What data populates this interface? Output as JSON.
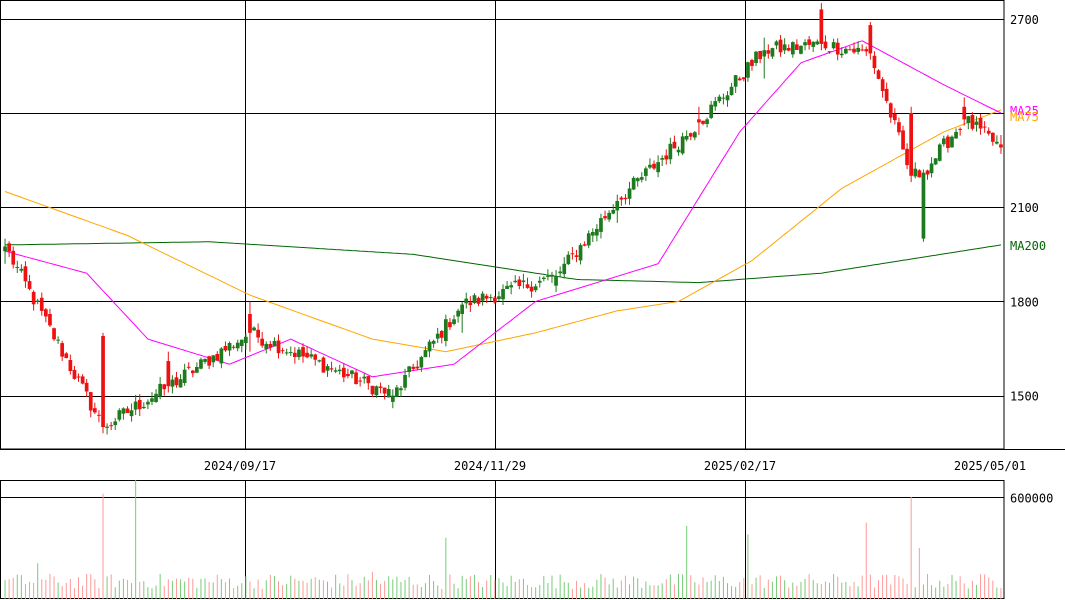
{
  "chart_data": [
    {
      "type": "candlestick",
      "panel": "price",
      "ylim": [
        1330,
        2760
      ],
      "y_ticks": [
        1500,
        1800,
        2100,
        2700
      ],
      "y_tick_labels": [
        "1500",
        "1800",
        "2100",
        "2700"
      ],
      "x_ticks": [
        "2024/09/17",
        "2024/11/29",
        "2025/02/17",
        "2025/05/01"
      ],
      "grid": true,
      "colors": {
        "up": "#1e7a1e",
        "down": "#ee1111",
        "ma25": "#ff00ff",
        "ma75": "#ffa500",
        "ma200": "#006600"
      },
      "moving_average_labels": [
        {
          "name": "MA25",
          "color": "#ff00ff"
        },
        {
          "name": "MA75",
          "color": "#ffa500"
        },
        {
          "name": "MA200",
          "color": "#006600"
        }
      ],
      "x_count": 245,
      "key_ohlc": [
        {
          "i": 0,
          "open": 1960,
          "high": 2000,
          "low": 1920,
          "close": 1975
        },
        {
          "i": 24,
          "open": 1690,
          "high": 1700,
          "low": 1380,
          "close": 1400
        },
        {
          "i": 40,
          "open": 1610,
          "high": 1640,
          "low": 1510,
          "close": 1530
        },
        {
          "i": 60,
          "open": 1760,
          "high": 1800,
          "low": 1640,
          "close": 1700
        },
        {
          "i": 95,
          "open": 1480,
          "high": 1520,
          "low": 1460,
          "close": 1500
        },
        {
          "i": 112,
          "open": 1760,
          "high": 1800,
          "low": 1700,
          "close": 1790
        },
        {
          "i": 135,
          "open": 1850,
          "high": 1900,
          "low": 1830,
          "close": 1880
        },
        {
          "i": 150,
          "open": 2090,
          "high": 2140,
          "low": 2050,
          "close": 2120
        },
        {
          "i": 170,
          "open": 2380,
          "high": 2420,
          "low": 2330,
          "close": 2370
        },
        {
          "i": 186,
          "open": 2580,
          "high": 2640,
          "low": 2510,
          "close": 2600
        },
        {
          "i": 200,
          "open": 2730,
          "high": 2750,
          "low": 2600,
          "close": 2620
        },
        {
          "i": 212,
          "open": 2680,
          "high": 2690,
          "low": 2570,
          "close": 2590
        },
        {
          "i": 222,
          "open": 2400,
          "high": 2420,
          "low": 2180,
          "close": 2200
        },
        {
          "i": 225,
          "open": 2000,
          "high": 2220,
          "low": 1990,
          "close": 2210
        },
        {
          "i": 235,
          "open": 2420,
          "high": 2450,
          "low": 2360,
          "close": 2380
        },
        {
          "i": 244,
          "open": 2300,
          "high": 2330,
          "low": 2270,
          "close": 2290
        }
      ],
      "moving_averages": {
        "MA25": [
          {
            "i": 0,
            "v": 1960
          },
          {
            "i": 20,
            "v": 1890
          },
          {
            "i": 35,
            "v": 1680
          },
          {
            "i": 55,
            "v": 1600
          },
          {
            "i": 70,
            "v": 1680
          },
          {
            "i": 90,
            "v": 1560
          },
          {
            "i": 110,
            "v": 1600
          },
          {
            "i": 130,
            "v": 1800
          },
          {
            "i": 160,
            "v": 1920
          },
          {
            "i": 180,
            "v": 2340
          },
          {
            "i": 195,
            "v": 2560
          },
          {
            "i": 210,
            "v": 2630
          },
          {
            "i": 230,
            "v": 2490
          },
          {
            "i": 244,
            "v": 2400
          }
        ],
        "MA75": [
          {
            "i": 0,
            "v": 2150
          },
          {
            "i": 30,
            "v": 2010
          },
          {
            "i": 60,
            "v": 1820
          },
          {
            "i": 90,
            "v": 1680
          },
          {
            "i": 108,
            "v": 1640
          },
          {
            "i": 130,
            "v": 1700
          },
          {
            "i": 150,
            "v": 1770
          },
          {
            "i": 165,
            "v": 1800
          },
          {
            "i": 183,
            "v": 1930
          },
          {
            "i": 205,
            "v": 2160
          },
          {
            "i": 230,
            "v": 2340
          },
          {
            "i": 244,
            "v": 2410
          }
        ],
        "MA200": [
          {
            "i": 0,
            "v": 1980
          },
          {
            "i": 50,
            "v": 1990
          },
          {
            "i": 100,
            "v": 1950
          },
          {
            "i": 140,
            "v": 1870
          },
          {
            "i": 170,
            "v": 1860
          },
          {
            "i": 200,
            "v": 1890
          },
          {
            "i": 244,
            "v": 1980
          }
        ]
      }
    },
    {
      "type": "bar",
      "panel": "volume",
      "ylim": [
        0,
        700000
      ],
      "y_ticks": [
        600000
      ],
      "y_tick_labels": [
        "600000"
      ],
      "colors": {
        "bar": "#ff9999",
        "bar_up": "#77cc77"
      },
      "notable_volumes": [
        {
          "i": 8,
          "v": 210000
        },
        {
          "i": 24,
          "v": 620000
        },
        {
          "i": 32,
          "v": 720000
        },
        {
          "i": 90,
          "v": 160000
        },
        {
          "i": 108,
          "v": 360000
        },
        {
          "i": 167,
          "v": 430000
        },
        {
          "i": 182,
          "v": 380000
        },
        {
          "i": 211,
          "v": 450000
        },
        {
          "i": 222,
          "v": 600000
        },
        {
          "i": 224,
          "v": 300000
        }
      ]
    }
  ]
}
